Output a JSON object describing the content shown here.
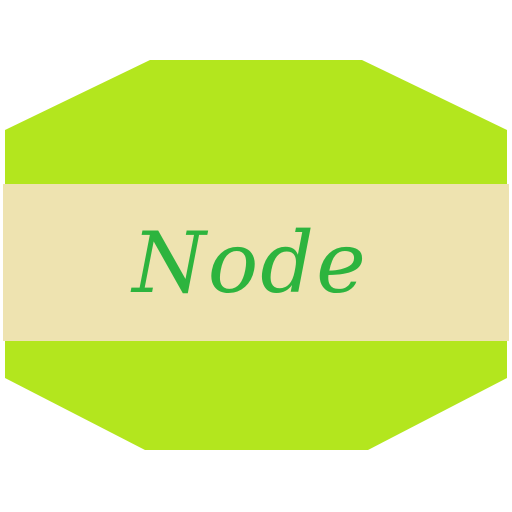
{
  "node": {
    "label": "Node"
  },
  "colors": {
    "shape_fill": "#b3e61e",
    "band_fill": "#eee3b0",
    "text": "#2db43e",
    "background": "#ffffff"
  }
}
